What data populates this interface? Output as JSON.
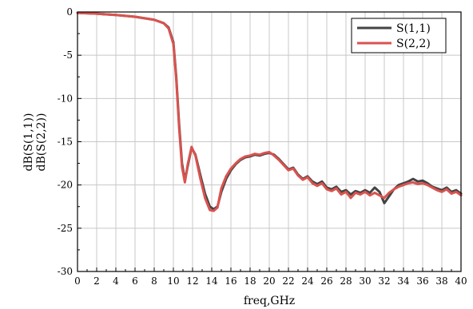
{
  "chart_data": {
    "type": "line",
    "xlabel": "freq,GHz",
    "ylabel_lines": [
      "dB(S(1,1))",
      "dB(S(2,2))"
    ],
    "xlim": [
      0,
      40
    ],
    "ylim": [
      -30,
      0
    ],
    "xticks": [
      0,
      2,
      4,
      6,
      8,
      10,
      12,
      14,
      16,
      18,
      20,
      22,
      24,
      26,
      28,
      30,
      32,
      34,
      36,
      38,
      40
    ],
    "yticks": [
      0,
      -5,
      -10,
      -15,
      -20,
      -25,
      -30
    ],
    "grid": true,
    "legend_position": "top-right",
    "series": [
      {
        "name": "S(1,1)",
        "color": "#444444",
        "x": [
          0,
          2,
          4,
          6,
          8,
          9,
          9.5,
          10,
          10.3,
          10.6,
          10.9,
          11.2,
          11.5,
          11.9,
          12.3,
          12.8,
          13.3,
          13.8,
          14.2,
          14.6,
          15.0,
          15.5,
          16.0,
          16.5,
          17.0,
          17.5,
          18.0,
          18.5,
          19.0,
          19.5,
          20.0,
          20.5,
          21.0,
          21.5,
          22.0,
          22.5,
          23.0,
          23.5,
          24.0,
          24.5,
          25.0,
          25.5,
          26.0,
          26.5,
          27.0,
          27.5,
          28.0,
          28.5,
          29.0,
          29.5,
          30.0,
          30.5,
          31.0,
          31.5,
          32.0,
          32.5,
          33.0,
          33.5,
          34.0,
          34.5,
          35.0,
          35.5,
          36.0,
          36.5,
          37.0,
          37.5,
          38.0,
          38.5,
          39.0,
          39.5,
          40.0
        ],
        "y": [
          -0.1,
          -0.2,
          -0.35,
          -0.55,
          -0.9,
          -1.3,
          -1.8,
          -3.5,
          -7.5,
          -13.0,
          -17.5,
          -19.5,
          -17.8,
          -15.7,
          -16.5,
          -18.8,
          -21.0,
          -22.5,
          -22.8,
          -22.5,
          -20.8,
          -19.3,
          -18.3,
          -17.6,
          -17.1,
          -16.8,
          -16.7,
          -16.5,
          -16.6,
          -16.4,
          -16.3,
          -16.5,
          -17.0,
          -17.6,
          -18.2,
          -18.0,
          -18.8,
          -19.3,
          -19.0,
          -19.6,
          -19.9,
          -19.6,
          -20.3,
          -20.5,
          -20.2,
          -20.8,
          -20.6,
          -21.1,
          -20.7,
          -20.9,
          -20.6,
          -20.9,
          -20.3,
          -20.8,
          -22.1,
          -21.3,
          -20.5,
          -20.0,
          -19.8,
          -19.6,
          -19.3,
          -19.6,
          -19.5,
          -19.8,
          -20.2,
          -20.4,
          -20.6,
          -20.3,
          -20.8,
          -20.6,
          -21.0
        ]
      },
      {
        "name": "S(2,2)",
        "color": "#d9534f",
        "x": [
          0,
          2,
          4,
          6,
          8,
          9,
          9.5,
          10,
          10.3,
          10.6,
          10.9,
          11.2,
          11.5,
          11.9,
          12.3,
          12.8,
          13.3,
          13.8,
          14.2,
          14.6,
          15.0,
          15.5,
          16.0,
          16.5,
          17.0,
          17.5,
          18.0,
          18.5,
          19.0,
          19.5,
          20.0,
          20.5,
          21.0,
          21.5,
          22.0,
          22.5,
          23.0,
          23.5,
          24.0,
          24.5,
          25.0,
          25.5,
          26.0,
          26.5,
          27.0,
          27.5,
          28.0,
          28.5,
          29.0,
          29.5,
          30.0,
          30.5,
          31.0,
          31.5,
          32.0,
          32.5,
          33.0,
          33.5,
          34.0,
          34.5,
          35.0,
          35.5,
          36.0,
          36.5,
          37.0,
          37.5,
          38.0,
          38.5,
          39.0,
          39.5,
          40.0
        ],
        "y": [
          -0.1,
          -0.2,
          -0.35,
          -0.55,
          -0.9,
          -1.3,
          -1.9,
          -3.7,
          -7.8,
          -13.4,
          -17.9,
          -19.7,
          -17.6,
          -15.6,
          -16.6,
          -19.2,
          -21.5,
          -22.9,
          -23.0,
          -22.6,
          -20.4,
          -19.0,
          -18.1,
          -17.5,
          -17.0,
          -16.7,
          -16.6,
          -16.4,
          -16.5,
          -16.3,
          -16.2,
          -16.6,
          -17.1,
          -17.7,
          -18.3,
          -18.1,
          -18.9,
          -19.4,
          -19.1,
          -19.8,
          -20.1,
          -19.8,
          -20.5,
          -20.7,
          -20.4,
          -21.1,
          -20.8,
          -21.5,
          -20.9,
          -21.1,
          -20.8,
          -21.2,
          -20.9,
          -21.2,
          -21.5,
          -20.9,
          -20.5,
          -20.2,
          -20.0,
          -19.8,
          -19.7,
          -19.9,
          -19.8,
          -20.0,
          -20.3,
          -20.6,
          -20.8,
          -20.5,
          -21.0,
          -20.8,
          -21.2
        ]
      }
    ]
  }
}
